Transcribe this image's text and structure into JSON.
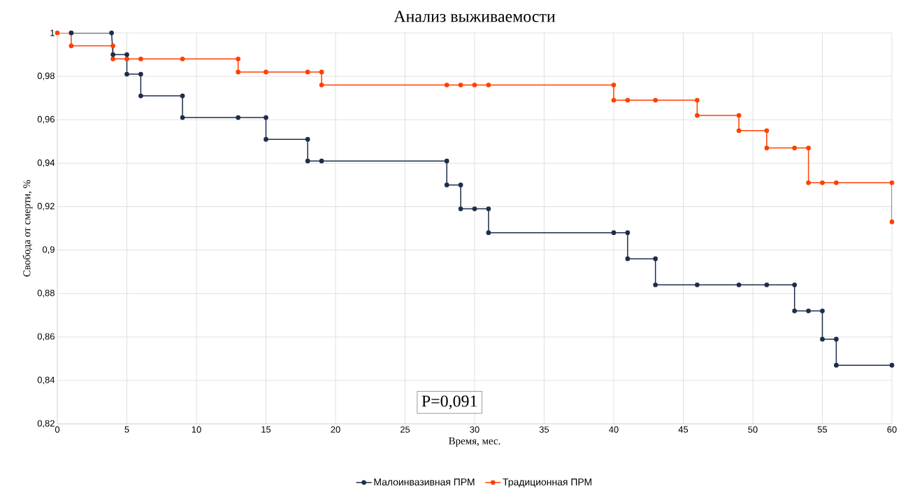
{
  "chart_data": {
    "type": "line",
    "title": "Анализ выживаемости",
    "xlabel": "Время, мес.",
    "ylabel": "Свобода от смерти, %",
    "series": [
      {
        "name": "Малоинвазивная ПРМ",
        "color": "#1c2e4a",
        "x": [
          1,
          3.9,
          4,
          5,
          5,
          6,
          6,
          9,
          9,
          13,
          15,
          15,
          18,
          18,
          19,
          28,
          28,
          29,
          29,
          30,
          31,
          31,
          40,
          41,
          41,
          43,
          43,
          46,
          49,
          51,
          53,
          53,
          54,
          55,
          55,
          56,
          56,
          60
        ],
        "values": [
          1,
          1,
          0.99,
          0.99,
          0.981,
          0.981,
          0.971,
          0.971,
          0.961,
          0.961,
          0.961,
          0.951,
          0.951,
          0.941,
          0.941,
          0.941,
          0.93,
          0.93,
          0.919,
          0.919,
          0.919,
          0.908,
          0.908,
          0.908,
          0.896,
          0.896,
          0.884,
          0.884,
          0.884,
          0.884,
          0.884,
          0.872,
          0.872,
          0.872,
          0.859,
          0.859,
          0.847,
          0.847
        ]
      },
      {
        "name": "Традиционная ПРМ",
        "color": "#ff4000",
        "x": [
          0,
          1,
          1,
          4,
          4,
          5,
          6,
          9,
          13,
          13,
          15,
          18,
          19,
          19,
          28,
          29,
          30,
          31,
          40,
          40,
          41,
          43,
          46,
          46,
          49,
          49,
          51,
          51,
          53,
          54,
          54,
          55,
          56,
          60,
          60
        ],
        "values": [
          1,
          1,
          0.994,
          0.994,
          0.988,
          0.988,
          0.988,
          0.988,
          0.988,
          0.982,
          0.982,
          0.982,
          0.982,
          0.976,
          0.976,
          0.976,
          0.976,
          0.976,
          0.976,
          0.969,
          0.969,
          0.969,
          0.969,
          0.962,
          0.962,
          0.955,
          0.955,
          0.947,
          0.947,
          0.947,
          0.931,
          0.931,
          0.931,
          0.931,
          0.913
        ]
      }
    ],
    "xlim": [
      0,
      60
    ],
    "xticks": [
      0,
      5,
      10,
      15,
      20,
      25,
      30,
      35,
      40,
      45,
      50,
      55,
      60
    ],
    "ylim": [
      0.82,
      1
    ],
    "yticks": [
      {
        "value": 0.82,
        "label": "0,82"
      },
      {
        "value": 0.84,
        "label": "0,84"
      },
      {
        "value": 0.86,
        "label": "0,86"
      },
      {
        "value": 0.88,
        "label": "0,88"
      },
      {
        "value": 0.9,
        "label": "0,9"
      },
      {
        "value": 0.92,
        "label": "0,92"
      },
      {
        "value": 0.94,
        "label": "0,94"
      },
      {
        "value": 0.96,
        "label": "0,96"
      },
      {
        "value": 0.98,
        "label": "0,98"
      },
      1
    ],
    "annotations": [
      "P=0,091"
    ],
    "grid": true,
    "legend": "bottom",
    "marker": "circle",
    "line_style": "solid"
  }
}
